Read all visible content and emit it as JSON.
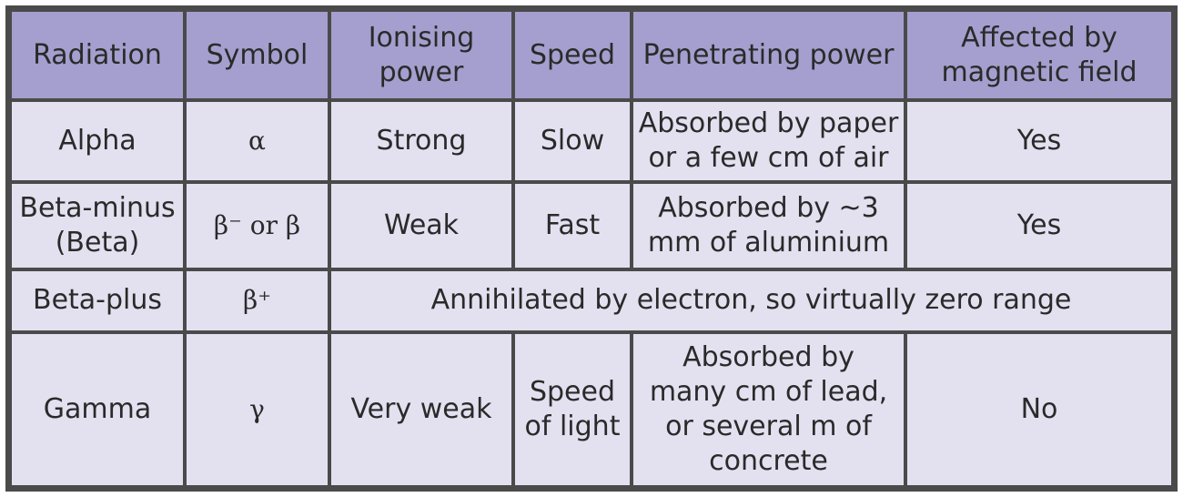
{
  "table": {
    "headers": [
      "Radiation",
      "Symbol",
      "Ionising\npower",
      "Speed",
      "Penetrating power",
      "Affected by\nmagnetic field"
    ],
    "rows": [
      {
        "radiation": "Alpha",
        "symbol": "α",
        "ionising": "Strong",
        "speed": "Slow",
        "penetrating": "Absorbed by paper\nor a few cm of air",
        "magnetic": "Yes"
      },
      {
        "radiation": "Beta-minus\n(Beta)",
        "symbol": "β⁻ or β",
        "ionising": "Weak",
        "speed": "Fast",
        "penetrating": "Absorbed by ~3\nmm of aluminium",
        "magnetic": "Yes"
      },
      {
        "radiation": "Beta-plus",
        "symbol": "β⁺",
        "merged": "Annihilated by electron, so virtually zero range"
      },
      {
        "radiation": "Gamma",
        "symbol": "γ",
        "ionising": "Very weak",
        "speed": "Speed\nof light",
        "penetrating": "Absorbed by\nmany cm of lead,\nor several m of\nconcrete",
        "magnetic": "No"
      }
    ]
  },
  "colors": {
    "header_bg": "#a49fce",
    "cell_bg": "#e3e1f0",
    "border": "#4a4a4a",
    "text": "#2a2a2a"
  }
}
